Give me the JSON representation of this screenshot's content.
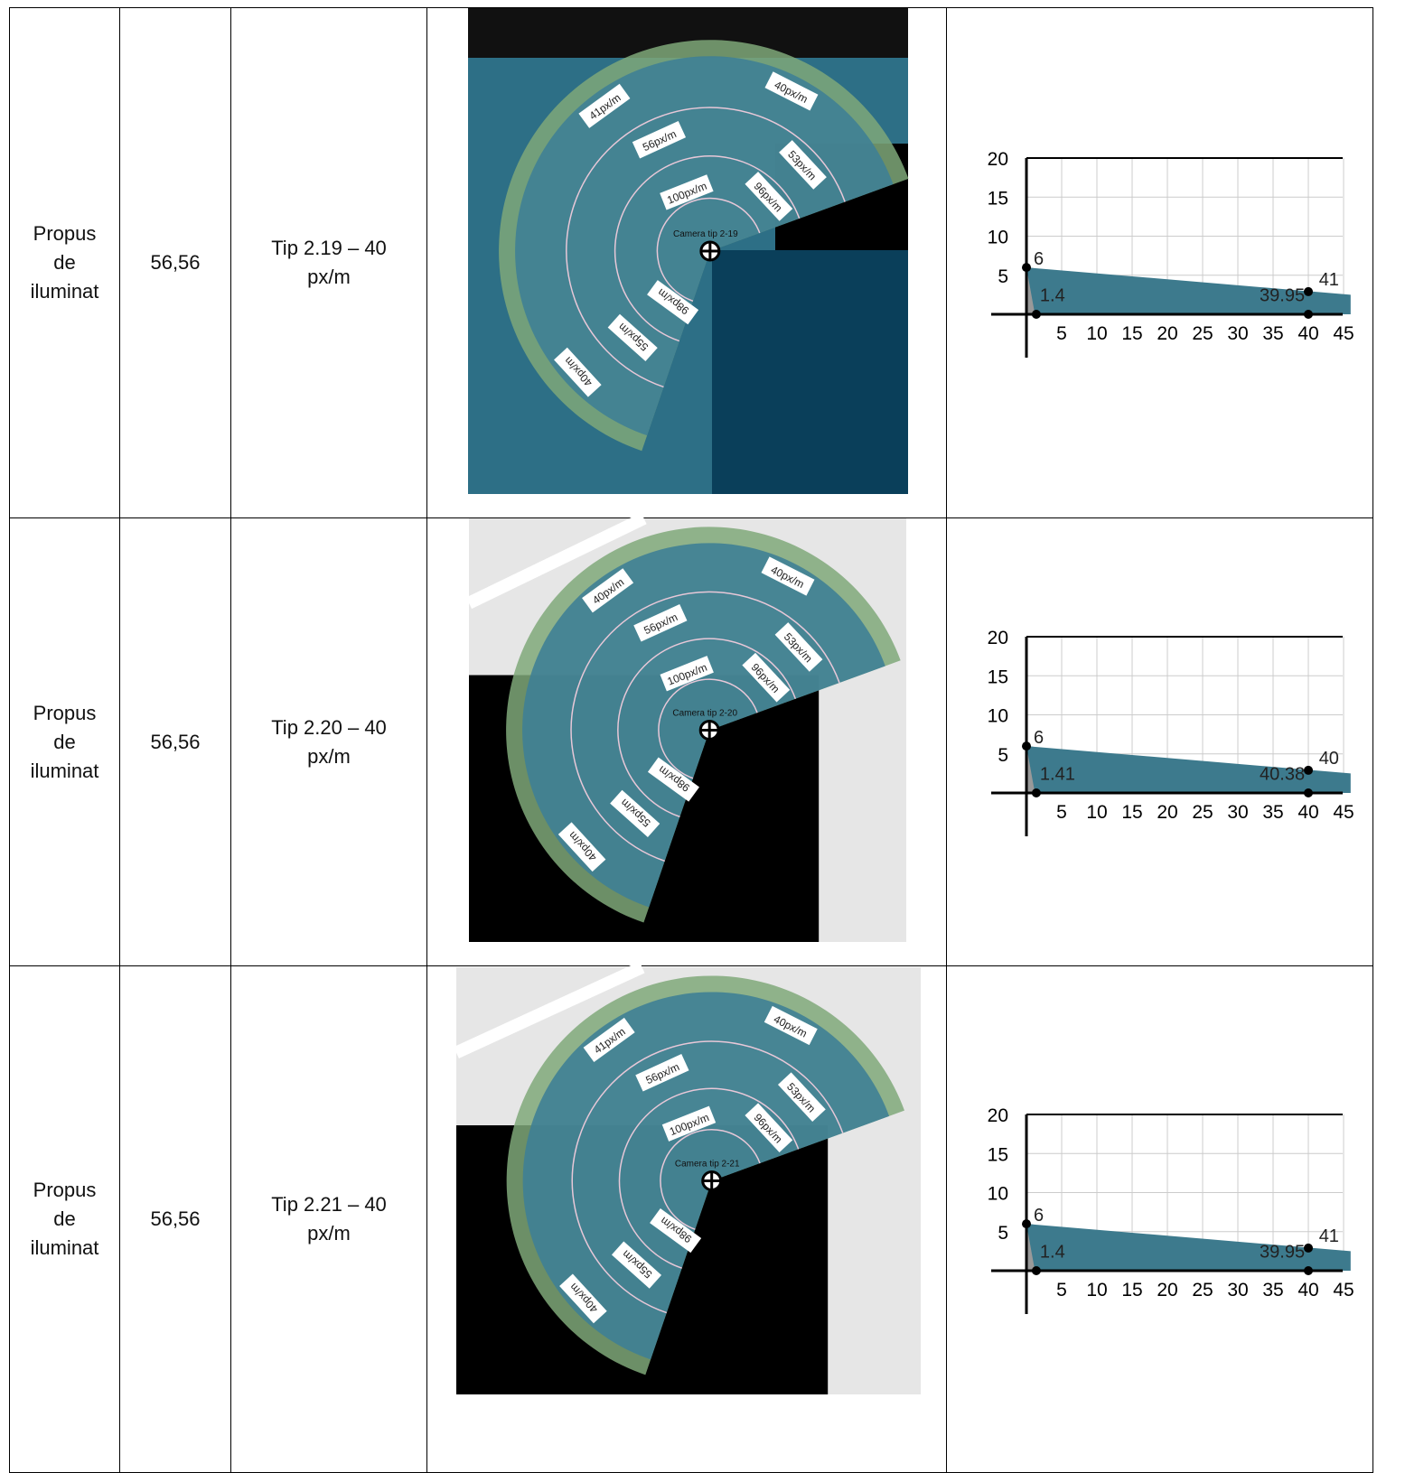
{
  "rows": [
    {
      "status": "Propus de iluminat",
      "value": "56,56",
      "type": "Tip 2.19 – 40 px/m",
      "map": {
        "labels": [
          "40px/m",
          "53px/m",
          "96px/m",
          "41px/m",
          "56px/m",
          "100px/m",
          "98px/m",
          "55px/m",
          "40px/m"
        ],
        "camera": "Camera tip 2-19"
      },
      "chart": {
        "yticks": [
          "20",
          "15",
          "10",
          "5"
        ],
        "xticks": [
          "5",
          "10",
          "15",
          "20",
          "25",
          "30",
          "35",
          "40",
          "45"
        ],
        "labels": [
          "6",
          "1.4",
          "39.95",
          "41"
        ]
      }
    },
    {
      "status": "Propus de iluminat",
      "value": "56,56",
      "type": "Tip 2.20 – 40 px/m",
      "map": {
        "labels": [
          "40px/m",
          "53px/m",
          "96px/m",
          "40px/m",
          "56px/m",
          "100px/m",
          "98px/m",
          "55px/m",
          "40px/m"
        ],
        "camera": "Camera tip 2-20"
      },
      "chart": {
        "yticks": [
          "20",
          "15",
          "10",
          "5"
        ],
        "xticks": [
          "5",
          "10",
          "15",
          "20",
          "25",
          "30",
          "35",
          "40",
          "45"
        ],
        "labels": [
          "6",
          "1.41",
          "40.38",
          "40"
        ]
      }
    },
    {
      "status": "Propus de iluminat",
      "value": "56,56",
      "type": "Tip 2.21 – 40 px/m",
      "map": {
        "labels": [
          "40px/m",
          "53px/m",
          "96px/m",
          "41px/m",
          "56px/m",
          "100px/m",
          "98px/m",
          "55px/m",
          "40px/m"
        ],
        "camera": "Camera tip 2-21"
      },
      "chart": {
        "yticks": [
          "20",
          "15",
          "10",
          "5"
        ],
        "xticks": [
          "5",
          "10",
          "15",
          "20",
          "25",
          "30",
          "35",
          "40",
          "45"
        ],
        "labels": [
          "6",
          "1.4",
          "39.95",
          "41"
        ]
      }
    }
  ]
}
